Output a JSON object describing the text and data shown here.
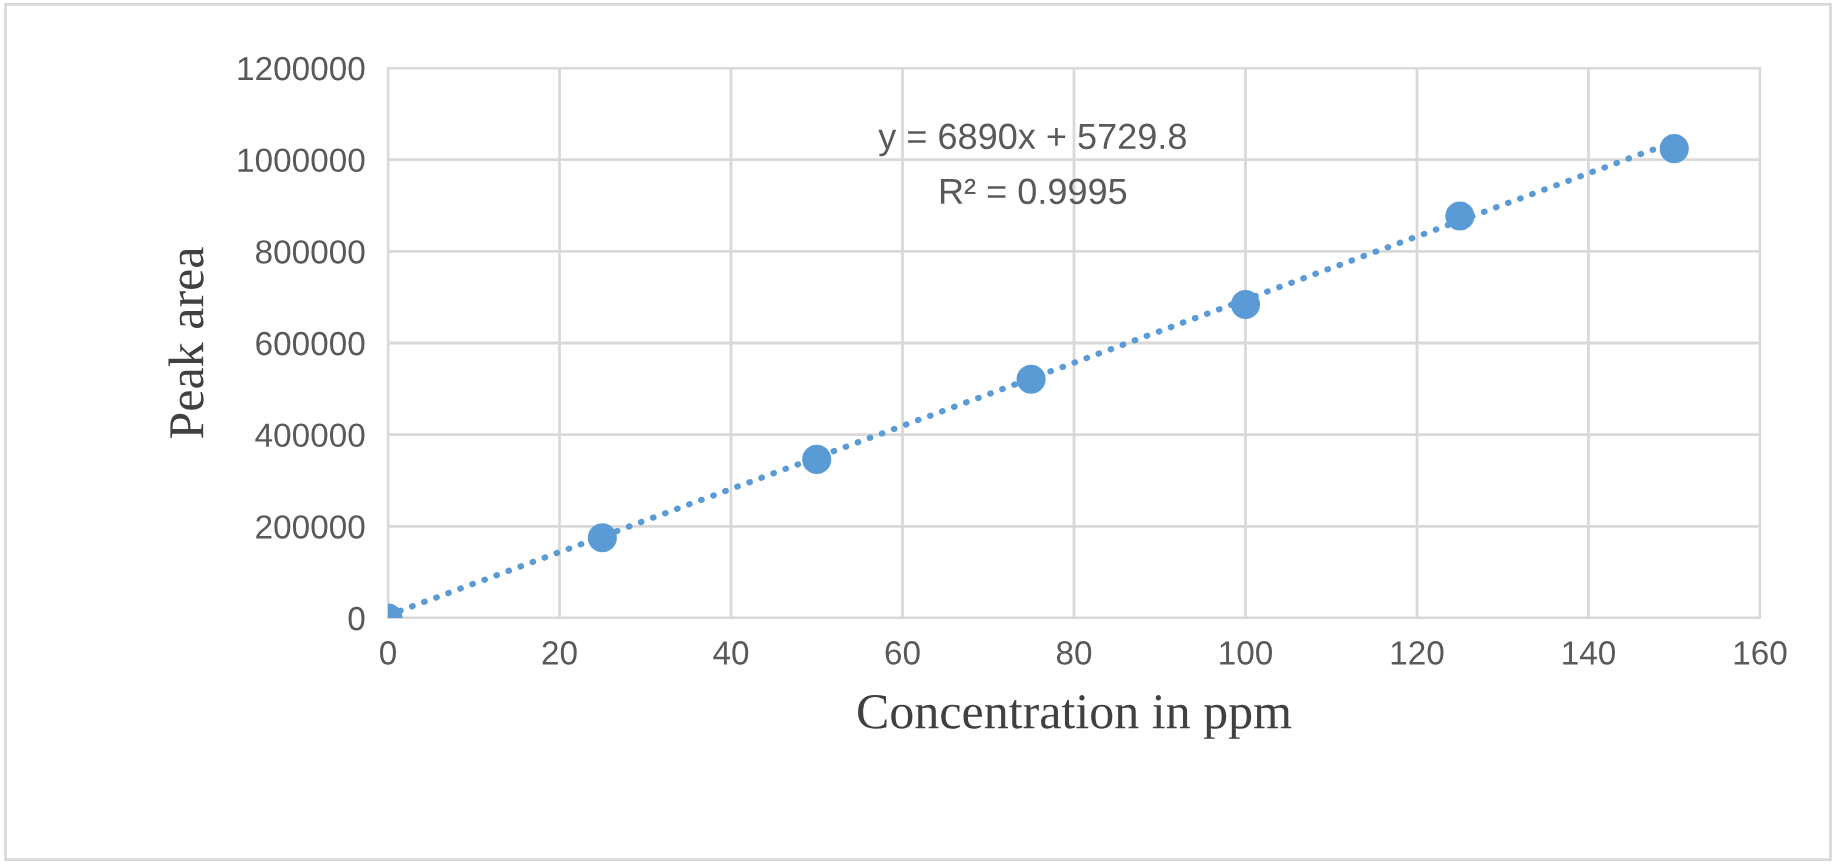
{
  "chart_data": {
    "type": "scatter",
    "xlabel": "Concentration in ppm",
    "ylabel": "Peak area",
    "x": [
      0,
      25,
      50,
      75,
      100,
      125,
      150
    ],
    "series": [
      {
        "color": "#5b9bd5",
        "values": [
          0,
          175000,
          346000,
          521000,
          684000,
          877000,
          1024000
        ],
        "marker": "circle"
      },
      {
        "type": "line",
        "color": "#5b9bd5",
        "x": [
          0,
          150
        ],
        "values": [
          6000,
          1039000
        ],
        "line_style": "dotted",
        "marker": "none"
      }
    ],
    "annotations": [
      "y = 6890x + 5729.8",
      "R² = 0.9995"
    ],
    "xlim": [
      0,
      160
    ],
    "xticks": [
      0,
      20,
      40,
      60,
      80,
      100,
      120,
      140,
      160
    ],
    "ylim": [
      0,
      1200000
    ],
    "yticks": [
      0,
      200000,
      400000,
      600000,
      800000,
      1000000,
      1200000
    ],
    "grid": true,
    "legend": false
  }
}
